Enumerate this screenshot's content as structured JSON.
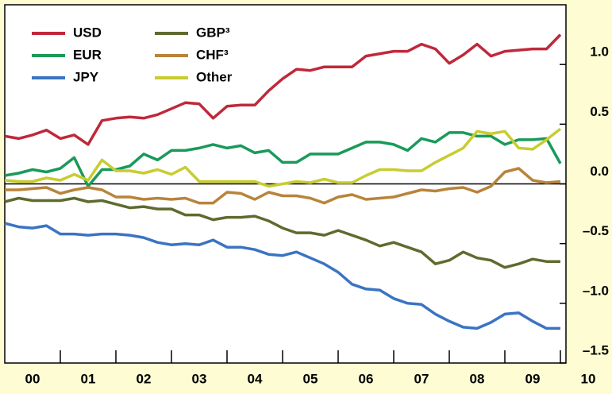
{
  "chart_data": {
    "type": "line",
    "x": [
      1999.5,
      1999.75,
      2000,
      2000.25,
      2000.5,
      2000.75,
      2001,
      2001.25,
      2001.5,
      2001.75,
      2002,
      2002.25,
      2002.5,
      2002.75,
      2003,
      2003.25,
      2003.5,
      2003.75,
      2004,
      2004.25,
      2004.5,
      2004.75,
      2005,
      2005.25,
      2005.5,
      2005.75,
      2006,
      2006.25,
      2006.5,
      2006.75,
      2007,
      2007.25,
      2007.5,
      2007.75,
      2008,
      2008.25,
      2008.5,
      2008.75,
      2009,
      2009.25,
      2009.5
    ],
    "series": [
      {
        "name": "USD",
        "color": "#c0283a",
        "values": [
          0.4,
          0.38,
          0.41,
          0.45,
          0.38,
          0.41,
          0.33,
          0.53,
          0.55,
          0.56,
          0.55,
          0.58,
          0.63,
          0.68,
          0.67,
          0.55,
          0.65,
          0.66,
          0.66,
          0.78,
          0.88,
          0.96,
          0.95,
          0.98,
          0.98,
          0.98,
          1.07,
          1.09,
          1.11,
          1.11,
          1.17,
          1.13,
          1.01,
          1.08,
          1.17,
          1.07,
          1.11,
          1.12,
          1.13,
          1.13,
          1.25
        ]
      },
      {
        "name": "EUR",
        "color": "#1a9a5a",
        "values": [
          0.07,
          0.09,
          0.12,
          0.1,
          0.13,
          0.22,
          -0.02,
          0.12,
          0.12,
          0.15,
          0.25,
          0.2,
          0.28,
          0.28,
          0.3,
          0.33,
          0.3,
          0.32,
          0.26,
          0.28,
          0.18,
          0.18,
          0.25,
          0.25,
          0.25,
          0.3,
          0.35,
          0.35,
          0.33,
          0.28,
          0.38,
          0.35,
          0.43,
          0.43,
          0.4,
          0.4,
          0.33,
          0.37,
          0.37,
          0.38,
          0.17
        ]
      },
      {
        "name": "JPY",
        "color": "#3a74c2",
        "values": [
          -0.33,
          -0.36,
          -0.37,
          -0.35,
          -0.42,
          -0.42,
          -0.43,
          -0.42,
          -0.42,
          -0.43,
          -0.45,
          -0.49,
          -0.51,
          -0.5,
          -0.51,
          -0.47,
          -0.53,
          -0.53,
          -0.55,
          -0.59,
          -0.6,
          -0.57,
          -0.62,
          -0.67,
          -0.74,
          -0.84,
          -0.88,
          -0.89,
          -0.96,
          -1.0,
          -1.01,
          -1.09,
          -1.15,
          -1.2,
          -1.21,
          -1.16,
          -1.09,
          -1.08,
          -1.15,
          -1.21,
          -1.21
        ]
      },
      {
        "name": "GBP³",
        "color": "#5e6b2e",
        "values": [
          -0.15,
          -0.12,
          -0.14,
          -0.14,
          -0.14,
          -0.12,
          -0.15,
          -0.14,
          -0.17,
          -0.2,
          -0.19,
          -0.21,
          -0.21,
          -0.26,
          -0.26,
          -0.3,
          -0.28,
          -0.28,
          -0.27,
          -0.31,
          -0.37,
          -0.41,
          -0.41,
          -0.43,
          -0.39,
          -0.43,
          -0.47,
          -0.52,
          -0.49,
          -0.53,
          -0.57,
          -0.67,
          -0.64,
          -0.57,
          -0.62,
          -0.64,
          -0.7,
          -0.67,
          -0.63,
          -0.65,
          -0.65
        ]
      },
      {
        "name": "CHF³",
        "color": "#b8843a",
        "values": [
          -0.05,
          -0.05,
          -0.04,
          -0.03,
          -0.08,
          -0.05,
          -0.03,
          -0.05,
          -0.11,
          -0.11,
          -0.13,
          -0.12,
          -0.13,
          -0.12,
          -0.16,
          -0.16,
          -0.07,
          -0.08,
          -0.13,
          -0.07,
          -0.1,
          -0.1,
          -0.12,
          -0.16,
          -0.11,
          -0.09,
          -0.13,
          -0.12,
          -0.11,
          -0.08,
          -0.05,
          -0.06,
          -0.04,
          -0.03,
          -0.07,
          -0.02,
          0.1,
          0.13,
          0.03,
          0.01,
          0.02
        ]
      },
      {
        "name": "Other",
        "color": "#c8cc30",
        "values": [
          0.03,
          0.02,
          0.02,
          0.05,
          0.03,
          0.08,
          0.03,
          0.2,
          0.11,
          0.11,
          0.09,
          0.12,
          0.08,
          0.14,
          0.02,
          0.02,
          0.02,
          0.02,
          0.02,
          -0.02,
          0.0,
          0.02,
          0.01,
          0.04,
          0.01,
          0.01,
          0.07,
          0.12,
          0.12,
          0.11,
          0.11,
          0.18,
          0.24,
          0.3,
          0.44,
          0.42,
          0.44,
          0.3,
          0.29,
          0.37,
          0.46
        ]
      }
    ],
    "xlim": [
      1999.5,
      2009.6
    ],
    "xticks": [
      {
        "value": 2000,
        "label": "00"
      },
      {
        "value": 2001,
        "label": "01"
      },
      {
        "value": 2002,
        "label": "02"
      },
      {
        "value": 2003,
        "label": "03"
      },
      {
        "value": 2004,
        "label": "04"
      },
      {
        "value": 2005,
        "label": "05"
      },
      {
        "value": 2006,
        "label": "06"
      },
      {
        "value": 2007,
        "label": "07"
      },
      {
        "value": 2008,
        "label": "08"
      },
      {
        "value": 2009,
        "label": "09"
      },
      {
        "value": 2010,
        "label": "10"
      }
    ],
    "ylim": [
      -1.5,
      1.5
    ],
    "yticks": [
      {
        "value": 1,
        "label": "1.0"
      },
      {
        "value": 0.5,
        "label": "0.5"
      },
      {
        "value": 0,
        "label": "0.0"
      },
      {
        "value": -0.5,
        "label": "–0.5"
      },
      {
        "value": -1,
        "label": "–1.0"
      },
      {
        "value": -1.5,
        "label": "–1.5"
      }
    ],
    "zero_line": true
  }
}
